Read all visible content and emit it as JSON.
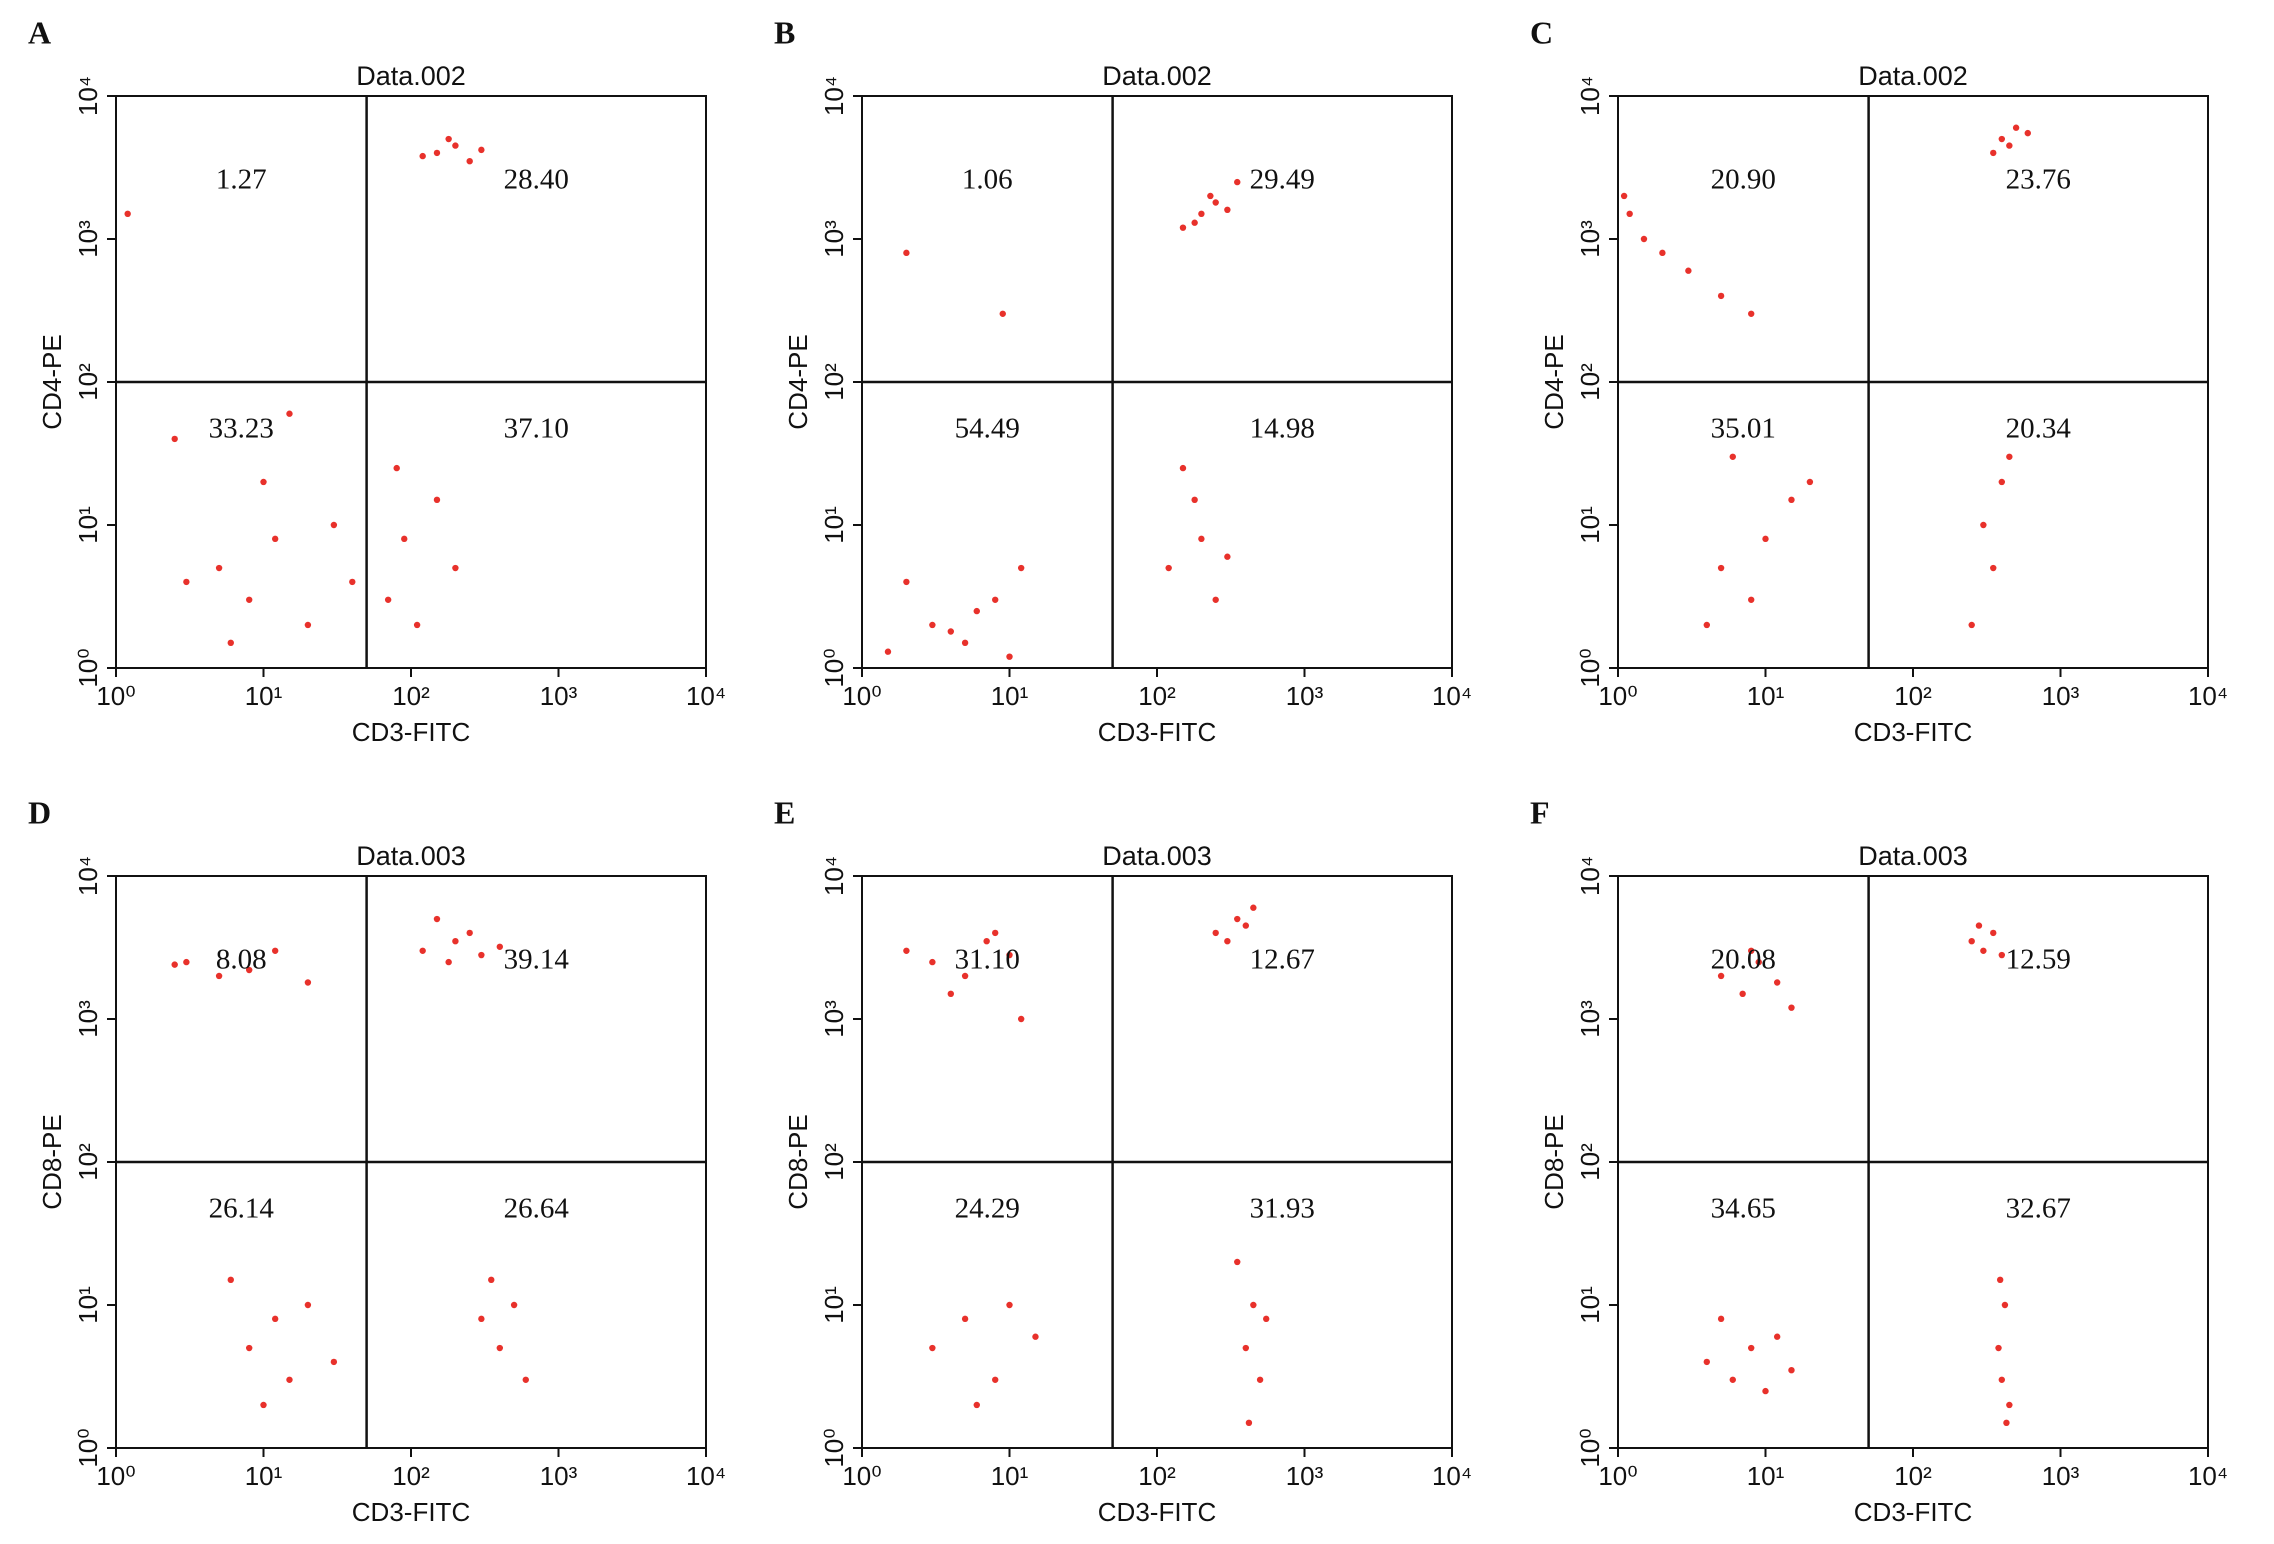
{
  "chart_data": [
    {
      "type": "scatter",
      "panel": "A",
      "title": "Data.002",
      "x_label": "CD3-FITC",
      "y_label": "CD4-PE",
      "log_scale": true,
      "xlim": [
        1,
        10000
      ],
      "ylim": [
        1,
        10000
      ],
      "xticks": [
        {
          "value": 1,
          "label": "10⁰"
        },
        {
          "value": 10,
          "label": "10¹"
        },
        {
          "value": 100,
          "label": "10²"
        },
        {
          "value": 1000,
          "label": "10³"
        },
        {
          "value": 10000,
          "label": "10⁴"
        }
      ],
      "yticks": [
        {
          "value": 1,
          "label": "10⁰"
        },
        {
          "value": 10,
          "label": "10¹"
        },
        {
          "value": 100,
          "label": "10²"
        },
        {
          "value": 1000,
          "label": "10³"
        },
        {
          "value": 10000,
          "label": "10⁴"
        }
      ],
      "gate_x": 50,
      "gate_y": 100,
      "quadrants": {
        "values": [
          1.27,
          28.4,
          33.23,
          37.1
        ],
        "value_labels": [
          "1.27",
          "28.40",
          "33.23",
          "37.10"
        ]
      },
      "points": {
        "color": "#e8312b",
        "x": [
          150,
          200,
          250,
          180,
          300,
          120,
          5,
          8,
          12,
          20,
          3,
          30,
          10,
          6,
          70,
          90,
          110,
          150,
          80,
          200,
          2.5,
          40,
          1.2,
          15
        ],
        "y": [
          4000,
          4500,
          3500,
          5000,
          4200,
          3800,
          5,
          3,
          8,
          2,
          4,
          10,
          20,
          1.5,
          3,
          8,
          2,
          15,
          25,
          5,
          40,
          4,
          1500,
          60
        ]
      }
    },
    {
      "type": "scatter",
      "panel": "B",
      "title": "Data.002",
      "x_label": "CD3-FITC",
      "y_label": "CD4-PE",
      "log_scale": true,
      "xlim": [
        1,
        10000
      ],
      "ylim": [
        1,
        10000
      ],
      "xticks": [
        {
          "value": 1,
          "label": "10⁰"
        },
        {
          "value": 10,
          "label": "10¹"
        },
        {
          "value": 100,
          "label": "10²"
        },
        {
          "value": 1000,
          "label": "10³"
        },
        {
          "value": 10000,
          "label": "10⁴"
        }
      ],
      "yticks": [
        {
          "value": 1,
          "label": "10⁰"
        },
        {
          "value": 10,
          "label": "10¹"
        },
        {
          "value": 100,
          "label": "10²"
        },
        {
          "value": 1000,
          "label": "10³"
        },
        {
          "value": 10000,
          "label": "10⁴"
        }
      ],
      "gate_x": 50,
      "gate_y": 100,
      "quadrants": {
        "values": [
          1.06,
          29.49,
          54.49,
          14.98
        ],
        "value_labels": [
          "1.06",
          "29.49",
          "54.49",
          "14.98"
        ]
      },
      "points": {
        "color": "#e8312b",
        "x": [
          200,
          250,
          300,
          180,
          230,
          150,
          350,
          3,
          5,
          8,
          10,
          2,
          6,
          12,
          4,
          1.5,
          120,
          200,
          250,
          180,
          300,
          150,
          2,
          9
        ],
        "y": [
          1500,
          1800,
          1600,
          1300,
          2000,
          1200,
          2500,
          2,
          1.5,
          3,
          1.2,
          4,
          2.5,
          5,
          1.8,
          1.3,
          5,
          8,
          3,
          15,
          6,
          25,
          800,
          300
        ]
      }
    },
    {
      "type": "scatter",
      "panel": "C",
      "title": "Data.002",
      "x_label": "CD3-FITC",
      "y_label": "CD4-PE",
      "log_scale": true,
      "xlim": [
        1,
        10000
      ],
      "ylim": [
        1,
        10000
      ],
      "xticks": [
        {
          "value": 1,
          "label": "10⁰"
        },
        {
          "value": 10,
          "label": "10¹"
        },
        {
          "value": 100,
          "label": "10²"
        },
        {
          "value": 1000,
          "label": "10³"
        },
        {
          "value": 10000,
          "label": "10⁴"
        }
      ],
      "yticks": [
        {
          "value": 1,
          "label": "10⁰"
        },
        {
          "value": 10,
          "label": "10¹"
        },
        {
          "value": 100,
          "label": "10²"
        },
        {
          "value": 1000,
          "label": "10³"
        },
        {
          "value": 10000,
          "label": "10⁴"
        }
      ],
      "gate_x": 50,
      "gate_y": 100,
      "quadrants": {
        "values": [
          20.9,
          23.76,
          35.01,
          20.34
        ],
        "value_labels": [
          "20.90",
          "23.76",
          "35.01",
          "20.34"
        ]
      },
      "points": {
        "color": "#e8312b",
        "x": [
          400,
          500,
          350,
          450,
          600,
          1.2,
          1.5,
          2,
          3,
          5,
          1.1,
          8,
          5,
          8,
          10,
          15,
          4,
          20,
          6,
          300,
          350,
          400,
          250,
          450
        ],
        "y": [
          5000,
          6000,
          4000,
          4500,
          5500,
          1500,
          1000,
          800,
          600,
          400,
          2000,
          300,
          5,
          3,
          8,
          15,
          2,
          20,
          30,
          10,
          5,
          20,
          2,
          30
        ]
      }
    },
    {
      "type": "scatter",
      "panel": "D",
      "title": "Data.003",
      "x_label": "CD3-FITC",
      "y_label": "CD8-PE",
      "log_scale": true,
      "xlim": [
        1,
        10000
      ],
      "ylim": [
        1,
        10000
      ],
      "xticks": [
        {
          "value": 1,
          "label": "10⁰"
        },
        {
          "value": 10,
          "label": "10¹"
        },
        {
          "value": 100,
          "label": "10²"
        },
        {
          "value": 1000,
          "label": "10³"
        },
        {
          "value": 10000,
          "label": "10⁴"
        }
      ],
      "yticks": [
        {
          "value": 1,
          "label": "10⁰"
        },
        {
          "value": 10,
          "label": "10¹"
        },
        {
          "value": 100,
          "label": "10²"
        },
        {
          "value": 1000,
          "label": "10³"
        },
        {
          "value": 10000,
          "label": "10⁴"
        }
      ],
      "gate_x": 50,
      "gate_y": 100,
      "quadrants": {
        "values": [
          8.08,
          39.14,
          26.14,
          26.64
        ],
        "value_labels": [
          "8.08",
          "39.14",
          "26.14",
          "26.64"
        ]
      },
      "points": {
        "color": "#e8312b",
        "x": [
          3,
          5,
          8,
          12,
          20,
          2.5,
          120,
          200,
          250,
          300,
          180,
          400,
          150,
          8,
          12,
          15,
          20,
          6,
          30,
          10,
          300,
          400,
          500,
          600,
          350
        ],
        "y": [
          2500,
          2000,
          2200,
          3000,
          1800,
          2400,
          3000,
          3500,
          4000,
          2800,
          2500,
          3200,
          5000,
          5,
          8,
          3,
          10,
          15,
          4,
          2,
          8,
          5,
          10,
          3,
          15
        ]
      }
    },
    {
      "type": "scatter",
      "panel": "E",
      "title": "Data.003",
      "x_label": "CD3-FITC",
      "y_label": "CD8-PE",
      "log_scale": true,
      "xlim": [
        1,
        10000
      ],
      "ylim": [
        1,
        10000
      ],
      "xticks": [
        {
          "value": 1,
          "label": "10⁰"
        },
        {
          "value": 10,
          "label": "10¹"
        },
        {
          "value": 100,
          "label": "10²"
        },
        {
          "value": 1000,
          "label": "10³"
        },
        {
          "value": 10000,
          "label": "10⁴"
        }
      ],
      "yticks": [
        {
          "value": 1,
          "label": "10⁰"
        },
        {
          "value": 10,
          "label": "10¹"
        },
        {
          "value": 100,
          "label": "10²"
        },
        {
          "value": 1000,
          "label": "10³"
        },
        {
          "value": 10000,
          "label": "10⁴"
        }
      ],
      "gate_x": 50,
      "gate_y": 100,
      "quadrants": {
        "values": [
          31.1,
          12.67,
          24.29,
          31.93
        ],
        "value_labels": [
          "31.10",
          "12.67",
          "24.29",
          "31.93"
        ]
      },
      "points": {
        "color": "#e8312b",
        "x": [
          2,
          3,
          5,
          7,
          10,
          4,
          8,
          12,
          250,
          350,
          400,
          300,
          450,
          3,
          5,
          8,
          10,
          15,
          6,
          400,
          450,
          500,
          350,
          550,
          420
        ],
        "y": [
          3000,
          2500,
          2000,
          3500,
          2800,
          1500,
          4000,
          1000,
          4000,
          5000,
          4500,
          3500,
          6000,
          5,
          8,
          3,
          10,
          6,
          2,
          5,
          10,
          3,
          20,
          8,
          1.5
        ]
      }
    },
    {
      "type": "scatter",
      "panel": "F",
      "title": "Data.003",
      "x_label": "CD3-FITC",
      "y_label": "CD8-PE",
      "log_scale": true,
      "xlim": [
        1,
        10000
      ],
      "ylim": [
        1,
        10000
      ],
      "xticks": [
        {
          "value": 1,
          "label": "10⁰"
        },
        {
          "value": 10,
          "label": "10¹"
        },
        {
          "value": 100,
          "label": "10²"
        },
        {
          "value": 1000,
          "label": "10³"
        },
        {
          "value": 10000,
          "label": "10⁴"
        }
      ],
      "yticks": [
        {
          "value": 1,
          "label": "10⁰"
        },
        {
          "value": 10,
          "label": "10¹"
        },
        {
          "value": 100,
          "label": "10²"
        },
        {
          "value": 1000,
          "label": "10³"
        },
        {
          "value": 10000,
          "label": "10⁴"
        }
      ],
      "gate_x": 50,
      "gate_y": 100,
      "quadrants": {
        "values": [
          20.08,
          12.59,
          34.65,
          32.67
        ],
        "value_labels": [
          "20.08",
          "12.59",
          "34.65",
          "32.67"
        ]
      },
      "points": {
        "color": "#e8312b",
        "x": [
          5,
          7,
          9,
          12,
          15,
          8,
          250,
          300,
          350,
          280,
          400,
          4,
          6,
          8,
          10,
          12,
          15,
          5,
          380,
          400,
          420,
          450,
          390,
          430
        ],
        "y": [
          2000,
          1500,
          2500,
          1800,
          1200,
          3000,
          3500,
          3000,
          4000,
          4500,
          2800,
          4,
          3,
          5,
          2.5,
          6,
          3.5,
          8,
          5,
          3,
          10,
          2,
          15,
          1.5
        ]
      }
    }
  ]
}
